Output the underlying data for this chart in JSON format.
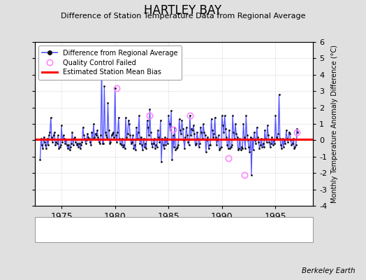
{
  "title": "HARTLEY BAY",
  "subtitle": "Difference of Station Temperature Data from Regional Average",
  "ylabel": "Monthly Temperature Anomaly Difference (°C)",
  "xlabel_years": [
    1975,
    1980,
    1985,
    1990,
    1995
  ],
  "ylim": [
    -4,
    6
  ],
  "yticks": [
    -4,
    -3,
    -2,
    -1,
    0,
    1,
    2,
    3,
    4,
    5,
    6
  ],
  "xlim": [
    1972.5,
    1998.5
  ],
  "mean_bias": 0.05,
  "background_color": "#e0e0e0",
  "plot_bg_color": "#ffffff",
  "line_color": "#5555ff",
  "marker_color": "#111111",
  "bias_color": "#ff0000",
  "qc_color": "#ff88ff",
  "berkeley_earth_text": "Berkeley Earth",
  "data_x": [
    1973.0,
    1973.083,
    1973.167,
    1973.25,
    1973.333,
    1973.417,
    1973.5,
    1973.583,
    1973.667,
    1973.75,
    1973.833,
    1973.917,
    1974.0,
    1974.083,
    1974.167,
    1974.25,
    1974.333,
    1974.417,
    1974.5,
    1974.583,
    1974.667,
    1974.75,
    1974.833,
    1974.917,
    1975.0,
    1975.083,
    1975.167,
    1975.25,
    1975.333,
    1975.417,
    1975.5,
    1975.583,
    1975.667,
    1975.75,
    1975.833,
    1975.917,
    1976.0,
    1976.083,
    1976.167,
    1976.25,
    1976.333,
    1976.417,
    1976.5,
    1976.583,
    1976.667,
    1976.75,
    1976.833,
    1976.917,
    1977.0,
    1977.083,
    1977.167,
    1977.25,
    1977.333,
    1977.417,
    1977.5,
    1977.583,
    1977.667,
    1977.75,
    1977.833,
    1977.917,
    1978.0,
    1978.083,
    1978.167,
    1978.25,
    1978.333,
    1978.417,
    1978.5,
    1978.583,
    1978.667,
    1978.75,
    1978.833,
    1978.917,
    1979.0,
    1979.083,
    1979.167,
    1979.25,
    1979.333,
    1979.417,
    1979.5,
    1979.583,
    1979.667,
    1979.75,
    1979.833,
    1979.917,
    1980.0,
    1980.083,
    1980.167,
    1980.25,
    1980.333,
    1980.417,
    1980.5,
    1980.583,
    1980.667,
    1980.75,
    1980.833,
    1980.917,
    1981.0,
    1981.083,
    1981.167,
    1981.25,
    1981.333,
    1981.417,
    1981.5,
    1981.583,
    1981.667,
    1981.75,
    1981.833,
    1981.917,
    1982.0,
    1982.083,
    1982.167,
    1982.25,
    1982.333,
    1982.417,
    1982.5,
    1982.583,
    1982.667,
    1982.75,
    1982.833,
    1982.917,
    1983.0,
    1983.083,
    1983.167,
    1983.25,
    1983.333,
    1983.417,
    1983.5,
    1983.583,
    1983.667,
    1983.75,
    1983.833,
    1983.917,
    1984.0,
    1984.083,
    1984.167,
    1984.25,
    1984.333,
    1984.417,
    1984.5,
    1984.583,
    1984.667,
    1984.75,
    1984.833,
    1984.917,
    1985.0,
    1985.083,
    1985.167,
    1985.25,
    1985.333,
    1985.417,
    1985.5,
    1985.583,
    1985.667,
    1985.75,
    1985.833,
    1985.917,
    1986.0,
    1986.083,
    1986.167,
    1986.25,
    1986.333,
    1986.417,
    1986.5,
    1986.583,
    1986.667,
    1986.75,
    1986.833,
    1986.917,
    1987.0,
    1987.083,
    1987.167,
    1987.25,
    1987.333,
    1987.417,
    1987.5,
    1987.583,
    1987.667,
    1987.75,
    1987.833,
    1987.917,
    1988.0,
    1988.083,
    1988.167,
    1988.25,
    1988.333,
    1988.417,
    1988.5,
    1988.583,
    1988.667,
    1988.75,
    1988.833,
    1988.917,
    1989.0,
    1989.083,
    1989.167,
    1989.25,
    1989.333,
    1989.417,
    1989.5,
    1989.583,
    1989.667,
    1989.75,
    1989.833,
    1989.917,
    1990.0,
    1990.083,
    1990.167,
    1990.25,
    1990.333,
    1990.417,
    1990.5,
    1990.583,
    1990.667,
    1990.75,
    1990.833,
    1990.917,
    1991.0,
    1991.083,
    1991.167,
    1991.25,
    1991.333,
    1991.417,
    1991.5,
    1991.583,
    1991.667,
    1991.75,
    1991.833,
    1991.917,
    1992.0,
    1992.083,
    1992.167,
    1992.25,
    1992.333,
    1992.417,
    1992.5,
    1992.583,
    1992.667,
    1992.75,
    1992.833,
    1992.917,
    1993.0,
    1993.083,
    1993.167,
    1993.25,
    1993.333,
    1993.417,
    1993.5,
    1993.583,
    1993.667,
    1993.75,
    1993.833,
    1993.917,
    1994.0,
    1994.083,
    1994.167,
    1994.25,
    1994.333,
    1994.417,
    1994.5,
    1994.583,
    1994.667,
    1994.75,
    1994.833,
    1994.917,
    1995.0,
    1995.083,
    1995.167,
    1995.25,
    1995.333,
    1995.417,
    1995.5,
    1995.583,
    1995.667,
    1995.75,
    1995.833,
    1995.917,
    1996.0,
    1996.083,
    1996.167,
    1996.25,
    1996.333,
    1996.417,
    1996.5,
    1996.583,
    1996.667,
    1996.75,
    1996.833,
    1996.917,
    1997.0,
    1997.083
  ],
  "data_y": [
    -1.2,
    0.1,
    -0.3,
    -0.5,
    0.2,
    -0.1,
    -0.3,
    -0.5,
    0.1,
    -0.3,
    0.3,
    0.5,
    1.4,
    0.2,
    -0.1,
    0.3,
    0.5,
    -0.3,
    -0.1,
    -0.2,
    0.3,
    -0.5,
    -0.4,
    -0.3,
    0.9,
    -0.1,
    0.3,
    0.1,
    -0.2,
    0.0,
    -0.3,
    -0.5,
    -0.3,
    -0.6,
    -0.4,
    -0.2,
    0.5,
    -0.3,
    0.1,
    0.2,
    -0.1,
    -0.3,
    -0.2,
    -0.4,
    -0.2,
    -0.5,
    -0.3,
    -0.1,
    0.8,
    0.3,
    0.1,
    -0.2,
    0.0,
    0.4,
    0.2,
    0.1,
    -0.1,
    -0.3,
    0.5,
    0.1,
    1.0,
    0.2,
    0.4,
    0.3,
    0.6,
    0.2,
    -0.1,
    -0.2,
    0.3,
    4.5,
    -0.2,
    -0.2,
    3.3,
    0.5,
    0.3,
    0.2,
    2.3,
    0.6,
    -0.2,
    -0.1,
    0.3,
    0.4,
    0.5,
    0.2,
    3.2,
    0.3,
    -0.1,
    0.5,
    1.4,
    0.1,
    -0.2,
    -0.3,
    0.1,
    -0.4,
    -0.3,
    -0.5,
    1.4,
    0.2,
    0.4,
    1.2,
    1.0,
    0.3,
    -0.2,
    -0.1,
    0.3,
    -0.5,
    -0.3,
    -0.6,
    0.8,
    0.1,
    0.5,
    1.5,
    -0.2,
    0.2,
    -0.3,
    -0.6,
    0.1,
    -0.4,
    -0.2,
    -0.5,
    1.2,
    0.8,
    0.3,
    1.9,
    0.5,
    -0.2,
    -0.4,
    -0.2,
    0.1,
    -0.5,
    -0.3,
    -0.4,
    0.6,
    0.2,
    -0.1,
    1.2,
    -1.3,
    0.1,
    -0.3,
    -0.5,
    0.2,
    -0.3,
    0.1,
    -0.2,
    1.5,
    1.0,
    0.6,
    1.8,
    -1.2,
    0.3,
    -0.4,
    0.8,
    -0.6,
    -0.5,
    -0.4,
    -0.3,
    1.3,
    0.6,
    0.4,
    1.2,
    0.7,
    0.0,
    -0.5,
    0.2,
    0.8,
    0.3,
    -0.1,
    -0.3,
    1.5,
    0.3,
    0.7,
    0.6,
    0.9,
    0.4,
    -0.3,
    -0.2,
    0.5,
    0.1,
    -0.4,
    -0.2,
    0.8,
    0.5,
    0.1,
    1.0,
    0.5,
    0.3,
    -0.7,
    0.0,
    0.2,
    -0.5,
    -0.3,
    -0.3,
    1.3,
    0.6,
    0.2,
    0.4,
    1.4,
    0.2,
    -0.3,
    0.0,
    0.3,
    -0.6,
    -0.5,
    -0.4,
    1.5,
    0.9,
    0.5,
    1.5,
    0.7,
    0.2,
    -0.3,
    -0.5,
    0.6,
    -0.5,
    -0.4,
    -0.3,
    1.5,
    0.5,
    0.1,
    1.0,
    0.4,
    0.2,
    -0.6,
    -0.5,
    0.1,
    -0.6,
    -0.4,
    -0.5,
    1.0,
    0.2,
    -0.5,
    1.5,
    0.3,
    0.0,
    -0.4,
    -0.7,
    0.2,
    -2.1,
    0.1,
    -0.6,
    0.5,
    0.0,
    -0.2,
    0.8,
    0.2,
    -0.1,
    -0.5,
    -0.3,
    0.1,
    -0.4,
    -0.2,
    -0.4,
    0.6,
    0.1,
    -0.1,
    0.9,
    0.3,
    -0.1,
    -0.4,
    -0.2,
    0.2,
    -0.3,
    0.0,
    -0.2,
    1.5,
    0.2,
    0.1,
    0.4,
    2.8,
    0.1,
    -0.3,
    -0.5,
    0.1,
    -0.4,
    0.0,
    -0.2,
    0.6,
    0.1,
    -0.1,
    0.5,
    0.4,
    0.0,
    -0.3,
    -0.2,
    0.1,
    -0.5,
    -0.4,
    -0.3,
    0.7,
    0.5
  ],
  "qc_failed_x": [
    1980.167,
    1983.25,
    1985.417,
    1987.0,
    1990.583,
    1992.083,
    1997.0
  ],
  "qc_failed_y": [
    3.2,
    1.5,
    0.65,
    1.5,
    -1.1,
    -2.1,
    0.5
  ]
}
